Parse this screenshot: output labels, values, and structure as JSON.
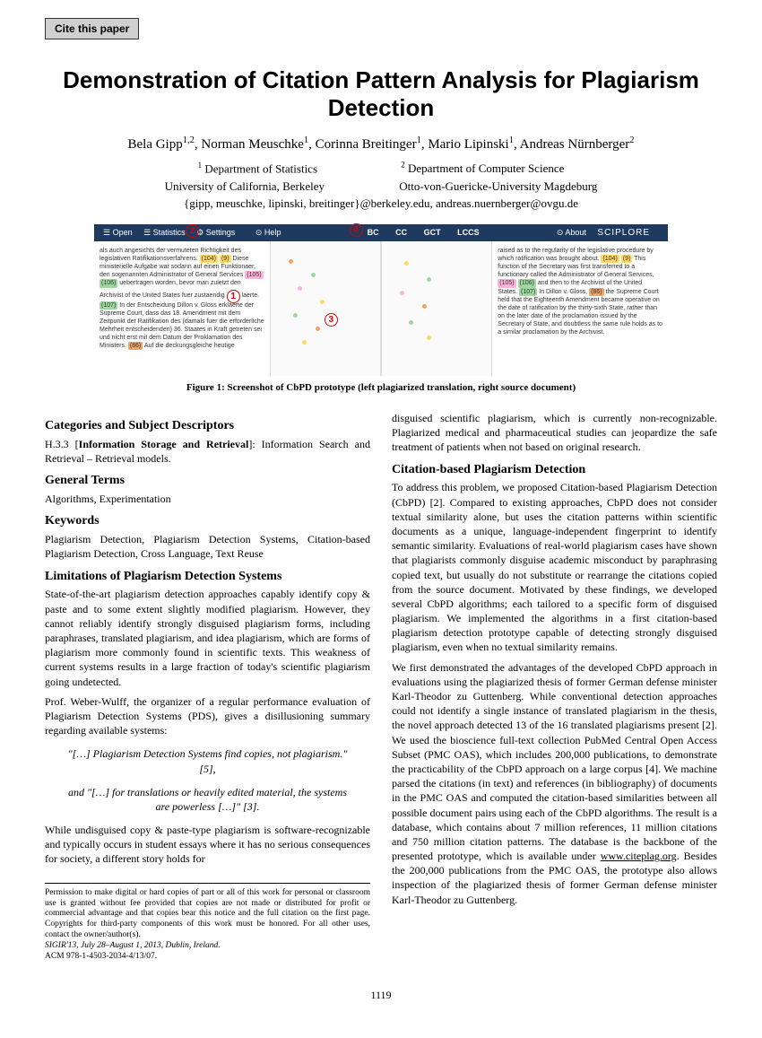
{
  "cite_button": "Cite this paper",
  "title": "Demonstration of Citation Pattern Analysis for Plagiarism Detection",
  "authors_html": "Bela Gipp<sup>1,2</sup>, Norman Meuschke<sup>1</sup>, Corinna Breitinger<sup>1</sup>, Mario Lipinski<sup>1</sup>, Andreas Nürnberger<sup>2</sup>",
  "affil1": "Department of Statistics",
  "affil1_inst": "University of California, Berkeley",
  "affil2": "Department of Computer Science",
  "affil2_inst": "Otto-von-Guericke-University Magdeburg",
  "emails": "{gipp, meuschke, lipinski, breitinger}@berkeley.edu, andreas.nuernberger@ovgu.de",
  "figure": {
    "toolbar_left": [
      "☰ Open",
      "☰ Statistics",
      "⚙ Settings",
      "⊙ Help"
    ],
    "toolbar_center": [
      "BC",
      "CC",
      "GCT",
      "LCCS"
    ],
    "toolbar_right": [
      "⊙ About",
      "SCIPLORE"
    ],
    "left_text": "als auch angesichts der vermuteten Richtigkeit des legislativen Ratifikationsverfahrens. (104) (9) Diese ministerielle Aufgabe war sodann auf einen Funktionaer, den sogenannten Administrator of General Services (105) (106) uebertragen worden, bevor man zuletzt den Archivist of the United States fuer zustaendig (1) laerte. (107) In der Entscheidung Dillon v. Gloss erklaerte der Supreme Court, dass das 18. Amendment mit dem Zeitpunkt der Ratifikation des (damals fuer die erforderliche Mehrheit entscheidenden) 36. Staates in Kraft getreten sei und nicht erst mit dem Datum der Proklamation des Ministers. (86) Auf die deckungsgleiche heutige",
    "right_text": "raised as to the regularity of the legislative procedure by which ratification was brought about. (104) (9) This function of the Secretary was first transferred to a functionary called the Administrator of General Services, (105) (106) and then to the Archivist of the United States. (107) In Dillon v. Gloss, (86) the Supreme Court held that the Eighteenth Amendment became operative on the date of ratification by the thirty-sixth State, rather than on the later date of the proclamation issued by the Secretary of State, and doubtless the same rule holds as to a similar proclamation by the Archivist.",
    "caption": "Figure 1: Screenshot of CbPD prototype (left plagiarized translation, right source document)"
  },
  "sections": {
    "categories": {
      "heading": "Categories and Subject Descriptors",
      "text": "H.3.3 [Information Storage and Retrieval]: Information Search and Retrieval – Retrieval models."
    },
    "general_terms": {
      "heading": "General Terms",
      "text": "Algorithms, Experimentation"
    },
    "keywords": {
      "heading": "Keywords",
      "text": "Plagiarism Detection, Plagiarism Detection Systems, Citation-based Plagiarism Detection, Cross Language, Text Reuse"
    },
    "limitations": {
      "heading": "Limitations of Plagiarism Detection Systems",
      "para1": "State-of-the-art plagiarism detection approaches capably identify copy & paste and to some extent slightly modified plagiarism. However, they cannot reliably identify strongly disguised plagiarism forms, including paraphrases, translated plagiarism, and idea plagiarism, which are forms of plagiarism more commonly found in scientific texts. This weakness of current systems results in a large fraction of today's scientific plagiarism going undetected.",
      "para2": "Prof. Weber-Wulff, the organizer of a regular performance evaluation of Plagiarism Detection Systems (PDS), gives a disillusioning summary regarding available systems:",
      "quote1": "\"[…] Plagiarism Detection Systems find copies, not plagiarism.\"[5],",
      "quote2": "and \"[…] for translations or heavily edited material, the systems are powerless […]\" [3].",
      "para3": "While undisguised copy & paste-type plagiarism is software-recognizable and typically occurs in student essays where it has no serious consequences for society, a different story holds for"
    },
    "right_intro": "disguised scientific plagiarism, which is currently non-recognizable. Plagiarized medical and pharmaceutical studies can jeopardize the safe treatment of patients when not based on original research.",
    "cbpd": {
      "heading": "Citation-based Plagiarism Detection",
      "para1": "To address this problem, we proposed Citation-based Plagiarism Detection (CbPD) [2]. Compared to existing approaches, CbPD does not consider textual similarity alone, but uses the citation patterns within scientific documents as a unique, language-independent fingerprint to identify semantic similarity. Evaluations of real-world plagiarism cases have shown that plagiarists commonly disguise academic misconduct by paraphrasing copied text, but usually do not substitute or rearrange the citations copied from the source document. Motivated by these findings, we developed several CbPD algorithms; each tailored to a specific form of disguised plagiarism. We implemented the algorithms in a first citation-based plagiarism detection prototype capable of detecting strongly disguised plagiarism, even when no textual similarity remains.",
      "para2": "We first demonstrated the advantages of the developed CbPD approach in evaluations using the plagiarized thesis of former German defense minister Karl-Theodor zu Guttenberg. While conventional detection approaches could not identify a single instance of translated plagiarism in the thesis, the novel approach detected 13 of the 16 translated plagiarisms present [2]. We used the bioscience full-text collection PubMed Central Open Access Subset (PMC OAS), which includes 200,000 publications, to demonstrate the practicability of the CbPD approach on a large corpus [4]. We machine parsed the citations (in text) and references (in bibliography) of documents in the PMC OAS and computed the citation-based similarities between all possible document pairs using each of the CbPD algorithms. The result is a database, which contains about 7 million references, 11 million citations and 750 million citation patterns. The database is the backbone of the presented prototype, which is available under www.citeplag.org. Besides the 200,000 publications from the PMC OAS, the prototype also allows inspection of the plagiarized thesis of former German defense minister Karl-Theodor zu Guttenberg."
    }
  },
  "permission": {
    "text": "Permission to make digital or hard copies of part or all of this work for personal or classroom use is granted without fee provided that copies are not made or distributed for profit or commercial advantage and that copies bear this notice and the full citation on the first page. Copyrights for third-party components of this work must be honored. For all other uses, contact the owner/author(s).",
    "conf": "SIGIR'13, July 28–August 1, 2013, Dublin, Ireland.",
    "acm": "ACM 978-1-4503-2034-4/13/07."
  },
  "pagenum": "1119"
}
